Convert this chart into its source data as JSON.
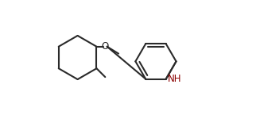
{
  "background_color": "#ffffff",
  "line_color": "#2a2a2a",
  "line_width": 1.5,
  "dbo": 0.006,
  "nh_color": "#8B0000",
  "font_size": 8.5,
  "fig_width": 3.27,
  "fig_height": 1.45,
  "dpi": 100,
  "xlim": [
    0.0,
    1.0
  ],
  "ylim": [
    0.15,
    0.88
  ]
}
